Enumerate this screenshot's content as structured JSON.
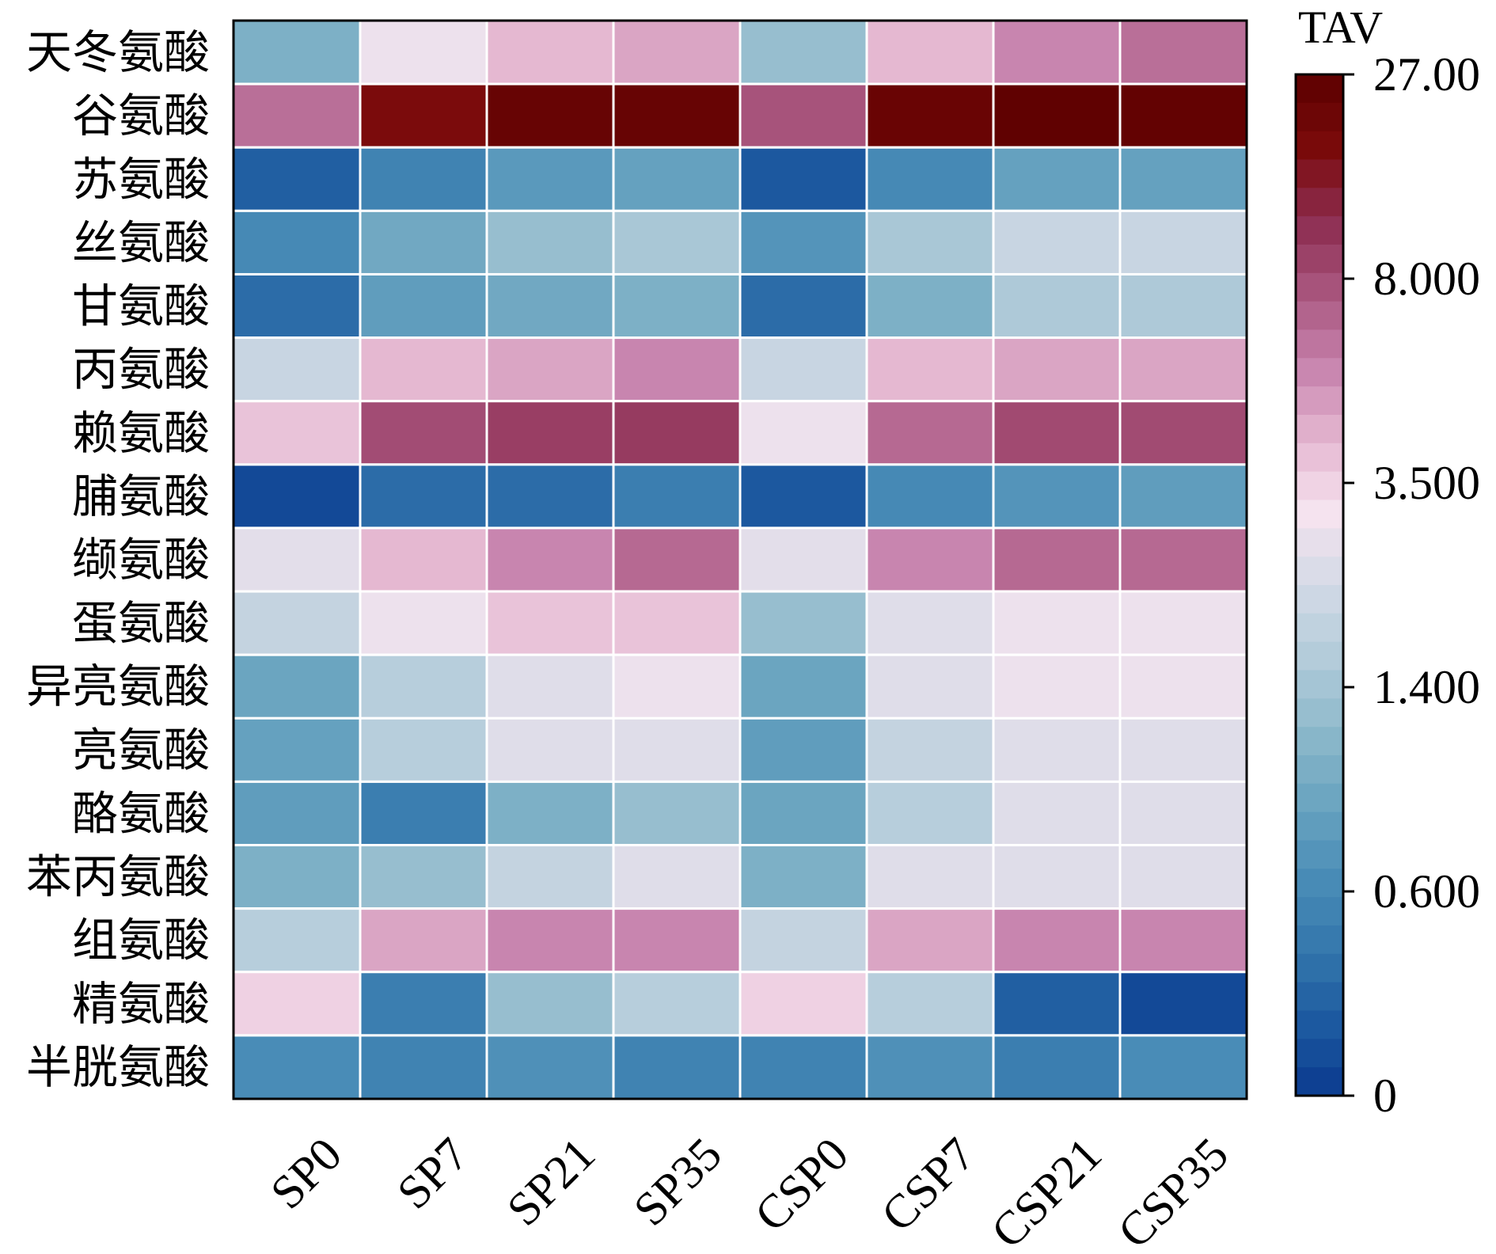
{
  "chart_data": {
    "type": "heatmap",
    "title": "",
    "xlabel": "",
    "ylabel": "",
    "colorbar_title": "TAV",
    "colorbar_ticks": [
      "27.00",
      "8.000",
      "3.500",
      "1.400",
      "0.600",
      "0"
    ],
    "colorbar_tick_values": [
      27,
      8,
      3.5,
      1.4,
      0.6,
      0
    ],
    "columns": [
      "SP0",
      "SP7",
      "SP21",
      "SP35",
      "CSP0",
      "CSP7",
      "CSP21",
      "CSP35"
    ],
    "rows": [
      "天冬氨酸",
      "谷氨酸",
      "苏氨酸",
      "丝氨酸",
      "甘氨酸",
      "丙氨酸",
      "赖氨酸",
      "脯氨酸",
      "缬氨酸",
      "蛋氨酸",
      "异亮氨酸",
      "亮氨酸",
      "酪氨酸",
      "苯丙氨酸",
      "组氨酸",
      "精氨酸",
      "半胱氨酸"
    ],
    "values": [
      [
        1.1,
        3.0,
        4.4,
        5.0,
        1.3,
        4.4,
        6.0,
        6.8
      ],
      [
        6.8,
        20.0,
        24.5,
        24.5,
        7.8,
        24.0,
        26.0,
        25.5
      ],
      [
        0.25,
        0.55,
        0.8,
        0.9,
        0.2,
        0.6,
        0.9,
        0.9
      ],
      [
        0.6,
        1.0,
        1.3,
        1.5,
        0.75,
        1.5,
        2.2,
        2.2
      ],
      [
        0.35,
        0.85,
        1.0,
        1.1,
        0.35,
        1.1,
        1.6,
        1.6
      ],
      [
        2.2,
        4.4,
        5.0,
        6.0,
        2.2,
        4.4,
        5.0,
        5.0
      ],
      [
        4.0,
        8.2,
        10.5,
        11.0,
        3.0,
        7.0,
        8.6,
        8.5
      ],
      [
        0.1,
        0.35,
        0.35,
        0.5,
        0.2,
        0.6,
        0.75,
        0.85
      ],
      [
        2.8,
        4.4,
        6.0,
        7.0,
        2.8,
        6.0,
        7.0,
        7.0
      ],
      [
        2.1,
        3.0,
        4.0,
        4.0,
        1.3,
        2.7,
        3.0,
        3.0
      ],
      [
        0.95,
        1.8,
        2.7,
        3.0,
        0.95,
        2.7,
        3.0,
        3.0
      ],
      [
        0.9,
        1.8,
        2.7,
        2.7,
        0.85,
        2.1,
        2.7,
        2.7
      ],
      [
        0.85,
        0.5,
        1.1,
        1.3,
        0.95,
        1.8,
        2.7,
        2.7
      ],
      [
        1.1,
        1.3,
        2.1,
        2.7,
        1.1,
        2.7,
        2.7,
        2.7
      ],
      [
        1.8,
        5.0,
        6.0,
        6.0,
        2.1,
        5.0,
        6.0,
        6.0
      ],
      [
        3.5,
        0.5,
        1.3,
        1.8,
        3.5,
        1.8,
        0.25,
        0.1
      ],
      [
        0.65,
        0.55,
        0.7,
        0.55,
        0.55,
        0.7,
        0.5,
        0.65
      ]
    ],
    "colormap": [
      "#0b3a8f",
      "#1d5aa0",
      "#3477ac",
      "#4a8db7",
      "#6aa4c0",
      "#8db9cb",
      "#b3ccda",
      "#d3dae6",
      "#f6e3ef",
      "#e4b6d0",
      "#c783ad",
      "#a9567f",
      "#8c2c4f",
      "#7a0a0a",
      "#5c0000"
    ],
    "grid": true,
    "legend": "none"
  }
}
